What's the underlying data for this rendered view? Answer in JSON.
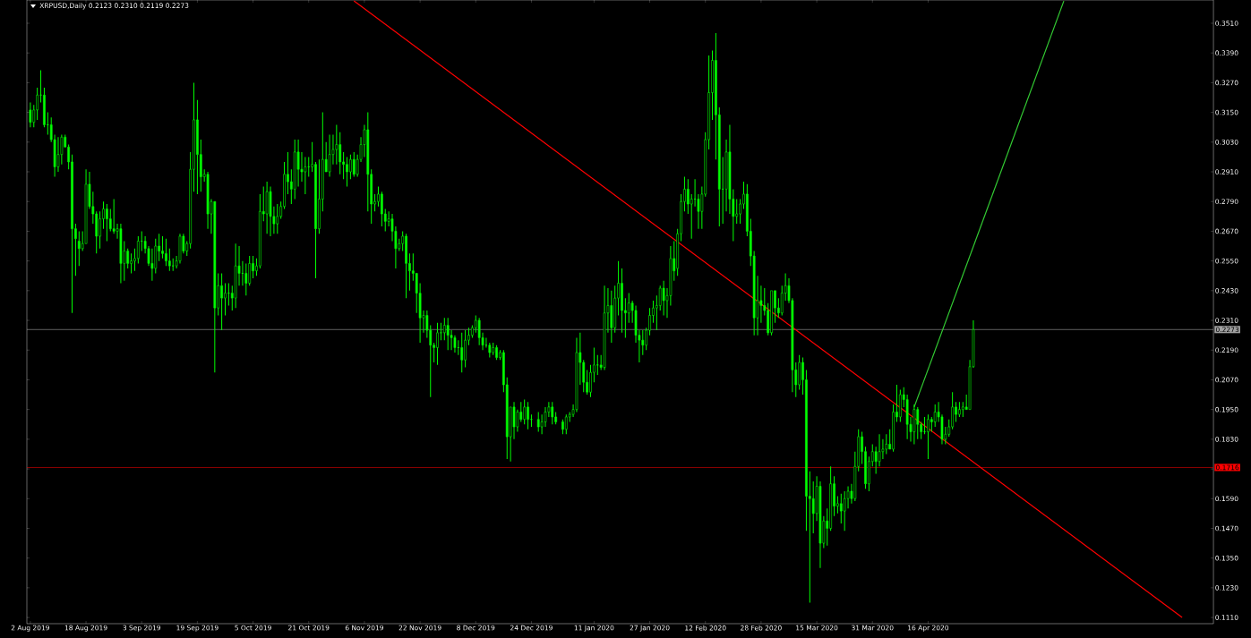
{
  "chart_data": {
    "type": "candlestick",
    "title": "XRPUSD,Daily  0.2123 0.2310 0.2119 0.2273",
    "color": "#00ff00",
    "x": [
      "2019-08-02",
      "2019-08-03",
      "2019-08-04",
      "2019-08-05",
      "2019-08-06",
      "2019-08-07",
      "2019-08-08",
      "2019-08-09",
      "2019-08-10",
      "2019-08-11",
      "2019-08-12",
      "2019-08-13",
      "2019-08-14",
      "2019-08-15",
      "2019-08-16",
      "2019-08-17",
      "2019-08-18",
      "2019-08-19",
      "2019-08-20",
      "2019-08-21",
      "2019-08-22",
      "2019-08-23",
      "2019-08-24",
      "2019-08-25",
      "2019-08-26",
      "2019-08-27",
      "2019-08-28",
      "2019-08-29",
      "2019-08-30",
      "2019-08-31",
      "2019-09-01",
      "2019-09-02",
      "2019-09-03",
      "2019-09-04",
      "2019-09-05",
      "2019-09-06",
      "2019-09-07",
      "2019-09-08",
      "2019-09-09",
      "2019-09-10",
      "2019-09-11",
      "2019-09-12",
      "2019-09-13",
      "2019-09-14",
      "2019-09-15",
      "2019-09-16",
      "2019-09-17",
      "2019-09-18",
      "2019-09-19",
      "2019-09-20",
      "2019-09-21",
      "2019-09-22",
      "2019-09-23",
      "2019-09-24",
      "2019-09-25",
      "2019-09-26",
      "2019-09-27",
      "2019-09-28",
      "2019-09-29",
      "2019-09-30",
      "2019-10-01",
      "2019-10-02",
      "2019-10-03",
      "2019-10-04",
      "2019-10-05",
      "2019-10-06",
      "2019-10-07",
      "2019-10-08",
      "2019-10-09",
      "2019-10-10",
      "2019-10-11",
      "2019-10-12",
      "2019-10-13",
      "2019-10-14",
      "2019-10-15",
      "2019-10-16",
      "2019-10-17",
      "2019-10-18",
      "2019-10-19",
      "2019-10-20",
      "2019-10-21",
      "2019-10-22",
      "2019-10-23",
      "2019-10-24",
      "2019-10-25",
      "2019-10-26",
      "2019-10-27",
      "2019-10-28",
      "2019-10-29",
      "2019-10-30",
      "2019-10-31",
      "2019-11-01",
      "2019-11-02",
      "2019-11-03",
      "2019-11-04",
      "2019-11-05",
      "2019-11-06",
      "2019-11-07",
      "2019-11-08",
      "2019-11-09",
      "2019-11-10",
      "2019-11-11",
      "2019-11-12",
      "2019-11-13",
      "2019-11-14",
      "2019-11-15",
      "2019-11-16",
      "2019-11-17",
      "2019-11-18",
      "2019-11-19",
      "2019-11-20",
      "2019-11-21",
      "2019-11-22",
      "2019-11-23",
      "2019-11-24",
      "2019-11-25",
      "2019-11-26",
      "2019-11-27",
      "2019-11-28",
      "2019-11-29",
      "2019-11-30",
      "2019-12-01",
      "2019-12-02",
      "2019-12-03",
      "2019-12-04",
      "2019-12-05",
      "2019-12-06",
      "2019-12-07",
      "2019-12-08",
      "2019-12-09",
      "2019-12-10",
      "2019-12-11",
      "2019-12-12",
      "2019-12-13",
      "2019-12-14",
      "2019-12-15",
      "2019-12-16",
      "2019-12-17",
      "2019-12-18",
      "2019-12-19",
      "2019-12-20",
      "2019-12-21",
      "2019-12-22",
      "2019-12-23",
      "2019-12-24",
      "2019-12-26",
      "2019-12-27",
      "2019-12-28",
      "2019-12-29",
      "2019-12-30",
      "2019-12-31",
      "2020-01-02",
      "2020-01-03",
      "2020-01-04",
      "2020-01-05",
      "2020-01-06",
      "2020-01-07",
      "2020-01-08",
      "2020-01-09",
      "2020-01-10",
      "2020-01-11",
      "2020-01-12",
      "2020-01-13",
      "2020-01-14",
      "2020-01-15",
      "2020-01-16",
      "2020-01-17",
      "2020-01-18",
      "2020-01-19",
      "2020-01-20",
      "2020-01-21",
      "2020-01-22",
      "2020-01-23",
      "2020-01-24",
      "2020-01-25",
      "2020-01-26",
      "2020-01-27",
      "2020-01-28",
      "2020-01-29",
      "2020-01-30",
      "2020-01-31",
      "2020-02-01",
      "2020-02-02",
      "2020-02-03",
      "2020-02-04",
      "2020-02-05",
      "2020-02-06",
      "2020-02-07",
      "2020-02-08",
      "2020-02-09",
      "2020-02-10",
      "2020-02-11",
      "2020-02-12",
      "2020-02-13",
      "2020-02-14",
      "2020-02-15",
      "2020-02-16",
      "2020-02-17",
      "2020-02-18",
      "2020-02-19",
      "2020-02-20",
      "2020-02-21",
      "2020-02-22",
      "2020-02-23",
      "2020-02-24",
      "2020-02-25",
      "2020-02-26",
      "2020-02-27",
      "2020-02-28",
      "2020-02-29",
      "2020-03-01",
      "2020-03-02",
      "2020-03-03",
      "2020-03-04",
      "2020-03-05",
      "2020-03-06",
      "2020-03-07",
      "2020-03-08",
      "2020-03-09",
      "2020-03-10",
      "2020-03-11",
      "2020-03-12",
      "2020-03-13",
      "2020-03-14",
      "2020-03-15",
      "2020-03-16",
      "2020-03-17",
      "2020-03-18",
      "2020-03-19",
      "2020-03-20",
      "2020-03-21",
      "2020-03-22",
      "2020-03-23",
      "2020-03-24",
      "2020-03-25",
      "2020-03-26",
      "2020-03-27",
      "2020-03-28",
      "2020-03-29",
      "2020-03-30",
      "2020-03-31",
      "2020-04-01",
      "2020-04-02",
      "2020-04-03",
      "2020-04-04",
      "2020-04-05",
      "2020-04-06",
      "2020-04-07",
      "2020-04-08",
      "2020-04-09",
      "2020-04-10",
      "2020-04-11",
      "2020-04-12",
      "2020-04-13",
      "2020-04-14",
      "2020-04-15",
      "2020-04-16",
      "2020-04-17",
      "2020-04-18",
      "2020-04-19",
      "2020-04-20",
      "2020-04-21",
      "2020-04-22",
      "2020-04-23",
      "2020-04-24",
      "2020-04-25",
      "2020-04-26",
      "2020-04-27",
      "2020-04-28",
      "2020-04-29"
    ],
    "ohlc": [
      [
        0.316,
        0.319,
        0.309,
        0.311
      ],
      [
        0.311,
        0.318,
        0.309,
        0.316
      ],
      [
        0.316,
        0.325,
        0.312,
        0.322
      ],
      [
        0.322,
        0.332,
        0.319,
        0.322
      ],
      [
        0.322,
        0.325,
        0.309,
        0.31
      ],
      [
        0.31,
        0.315,
        0.306,
        0.31
      ],
      [
        0.31,
        0.313,
        0.303,
        0.304
      ],
      [
        0.304,
        0.306,
        0.289,
        0.293
      ],
      [
        0.293,
        0.305,
        0.291,
        0.298
      ],
      [
        0.298,
        0.306,
        0.294,
        0.305
      ],
      [
        0.305,
        0.306,
        0.301,
        0.301
      ],
      [
        0.301,
        0.302,
        0.292,
        0.295
      ],
      [
        0.295,
        0.298,
        0.234,
        0.268
      ],
      [
        0.268,
        0.27,
        0.249,
        0.264
      ],
      [
        0.263,
        0.267,
        0.253,
        0.26
      ],
      [
        0.26,
        0.267,
        0.259,
        0.262
      ],
      [
        0.262,
        0.292,
        0.262,
        0.286
      ],
      [
        0.286,
        0.291,
        0.276,
        0.277
      ],
      [
        0.277,
        0.283,
        0.27,
        0.274
      ],
      [
        0.274,
        0.275,
        0.258,
        0.265
      ],
      [
        0.265,
        0.275,
        0.26,
        0.272
      ],
      [
        0.272,
        0.279,
        0.268,
        0.276
      ],
      [
        0.276,
        0.278,
        0.263,
        0.272
      ],
      [
        0.272,
        0.276,
        0.267,
        0.268
      ],
      [
        0.268,
        0.28,
        0.266,
        0.267
      ],
      [
        0.267,
        0.27,
        0.264,
        0.268
      ],
      [
        0.268,
        0.27,
        0.246,
        0.254
      ],
      [
        0.254,
        0.263,
        0.247,
        0.259
      ],
      [
        0.259,
        0.26,
        0.252,
        0.254
      ],
      [
        0.254,
        0.258,
        0.25,
        0.255
      ],
      [
        0.255,
        0.26,
        0.251,
        0.256
      ],
      [
        0.256,
        0.265,
        0.254,
        0.263
      ],
      [
        0.263,
        0.267,
        0.259,
        0.263
      ],
      [
        0.263,
        0.265,
        0.258,
        0.26
      ],
      [
        0.26,
        0.261,
        0.253,
        0.254
      ],
      [
        0.254,
        0.26,
        0.247,
        0.252
      ],
      [
        0.252,
        0.264,
        0.25,
        0.261
      ],
      [
        0.261,
        0.266,
        0.255,
        0.259
      ],
      [
        0.259,
        0.265,
        0.256,
        0.258
      ],
      [
        0.258,
        0.264,
        0.253,
        0.255
      ],
      [
        0.255,
        0.26,
        0.251,
        0.253
      ],
      [
        0.253,
        0.256,
        0.251,
        0.253
      ],
      [
        0.253,
        0.257,
        0.252,
        0.255
      ],
      [
        0.255,
        0.266,
        0.254,
        0.265
      ],
      [
        0.265,
        0.266,
        0.258,
        0.259
      ],
      [
        0.259,
        0.263,
        0.257,
        0.262
      ],
      [
        0.262,
        0.299,
        0.26,
        0.292
      ],
      [
        0.292,
        0.327,
        0.283,
        0.312
      ],
      [
        0.312,
        0.32,
        0.282,
        0.298
      ],
      [
        0.298,
        0.304,
        0.283,
        0.289
      ],
      [
        0.289,
        0.292,
        0.287,
        0.29
      ],
      [
        0.29,
        0.291,
        0.268,
        0.274
      ],
      [
        0.274,
        0.28,
        0.266,
        0.279
      ],
      [
        0.279,
        0.279,
        0.21,
        0.236
      ],
      [
        0.236,
        0.25,
        0.233,
        0.245
      ],
      [
        0.245,
        0.25,
        0.227,
        0.24
      ],
      [
        0.24,
        0.246,
        0.233,
        0.242
      ],
      [
        0.242,
        0.246,
        0.237,
        0.242
      ],
      [
        0.242,
        0.245,
        0.235,
        0.24
      ],
      [
        0.24,
        0.262,
        0.236,
        0.253
      ],
      [
        0.253,
        0.261,
        0.245,
        0.25
      ],
      [
        0.25,
        0.255,
        0.245,
        0.25
      ],
      [
        0.25,
        0.254,
        0.241,
        0.246
      ],
      [
        0.246,
        0.257,
        0.245,
        0.254
      ],
      [
        0.254,
        0.257,
        0.248,
        0.251
      ],
      [
        0.251,
        0.256,
        0.249,
        0.253
      ],
      [
        0.253,
        0.282,
        0.252,
        0.275
      ],
      [
        0.275,
        0.285,
        0.271,
        0.274
      ],
      [
        0.274,
        0.287,
        0.266,
        0.283
      ],
      [
        0.283,
        0.285,
        0.265,
        0.273
      ],
      [
        0.273,
        0.277,
        0.266,
        0.27
      ],
      [
        0.27,
        0.278,
        0.266,
        0.273
      ],
      [
        0.273,
        0.279,
        0.272,
        0.277
      ],
      [
        0.277,
        0.295,
        0.276,
        0.29
      ],
      [
        0.29,
        0.299,
        0.282,
        0.287
      ],
      [
        0.287,
        0.292,
        0.278,
        0.284
      ],
      [
        0.284,
        0.304,
        0.28,
        0.299
      ],
      [
        0.299,
        0.304,
        0.285,
        0.292
      ],
      [
        0.292,
        0.299,
        0.287,
        0.291
      ],
      [
        0.291,
        0.297,
        0.282,
        0.293
      ],
      [
        0.293,
        0.297,
        0.289,
        0.293
      ],
      [
        0.293,
        0.303,
        0.291,
        0.294
      ],
      [
        0.294,
        0.295,
        0.248,
        0.268
      ],
      [
        0.268,
        0.296,
        0.266,
        0.28
      ],
      [
        0.28,
        0.315,
        0.275,
        0.296
      ],
      [
        0.296,
        0.303,
        0.291,
        0.291
      ],
      [
        0.291,
        0.306,
        0.289,
        0.298
      ],
      [
        0.298,
        0.306,
        0.294,
        0.3
      ],
      [
        0.3,
        0.31,
        0.294,
        0.302
      ],
      [
        0.302,
        0.307,
        0.29,
        0.295
      ],
      [
        0.295,
        0.299,
        0.288,
        0.294
      ],
      [
        0.294,
        0.297,
        0.285,
        0.291
      ],
      [
        0.291,
        0.298,
        0.288,
        0.296
      ],
      [
        0.296,
        0.299,
        0.289,
        0.29
      ],
      [
        0.29,
        0.298,
        0.289,
        0.296
      ],
      [
        0.296,
        0.305,
        0.295,
        0.302
      ],
      [
        0.302,
        0.31,
        0.297,
        0.308
      ],
      [
        0.308,
        0.315,
        0.275,
        0.29
      ],
      [
        0.29,
        0.292,
        0.27,
        0.278
      ],
      [
        0.278,
        0.282,
        0.275,
        0.279
      ],
      [
        0.279,
        0.285,
        0.277,
        0.282
      ],
      [
        0.282,
        0.283,
        0.269,
        0.274
      ],
      [
        0.274,
        0.276,
        0.267,
        0.271
      ],
      [
        0.271,
        0.275,
        0.269,
        0.272
      ],
      [
        0.272,
        0.274,
        0.263,
        0.267
      ],
      [
        0.267,
        0.269,
        0.252,
        0.26
      ],
      [
        0.26,
        0.264,
        0.259,
        0.262
      ],
      [
        0.262,
        0.267,
        0.259,
        0.265
      ],
      [
        0.265,
        0.266,
        0.24,
        0.254
      ],
      [
        0.254,
        0.258,
        0.243,
        0.251
      ],
      [
        0.251,
        0.258,
        0.247,
        0.25
      ],
      [
        0.25,
        0.25,
        0.234,
        0.242
      ],
      [
        0.242,
        0.246,
        0.222,
        0.232
      ],
      [
        0.232,
        0.235,
        0.226,
        0.233
      ],
      [
        0.233,
        0.235,
        0.224,
        0.227
      ],
      [
        0.227,
        0.229,
        0.2,
        0.221
      ],
      [
        0.221,
        0.222,
        0.214,
        0.22
      ],
      [
        0.22,
        0.23,
        0.213,
        0.226
      ],
      [
        0.226,
        0.23,
        0.223,
        0.226
      ],
      [
        0.226,
        0.232,
        0.223,
        0.229
      ],
      [
        0.229,
        0.232,
        0.219,
        0.225
      ],
      [
        0.225,
        0.227,
        0.219,
        0.224
      ],
      [
        0.224,
        0.225,
        0.218,
        0.22
      ],
      [
        0.22,
        0.223,
        0.217,
        0.22
      ],
      [
        0.22,
        0.226,
        0.21,
        0.215
      ],
      [
        0.215,
        0.227,
        0.212,
        0.223
      ],
      [
        0.223,
        0.228,
        0.221,
        0.225
      ],
      [
        0.225,
        0.229,
        0.224,
        0.228
      ],
      [
        0.228,
        0.233,
        0.226,
        0.231
      ],
      [
        0.231,
        0.232,
        0.221,
        0.224
      ],
      [
        0.224,
        0.226,
        0.219,
        0.221
      ],
      [
        0.221,
        0.224,
        0.22,
        0.221
      ],
      [
        0.221,
        0.222,
        0.216,
        0.218
      ],
      [
        0.218,
        0.222,
        0.217,
        0.22
      ],
      [
        0.22,
        0.221,
        0.215,
        0.216
      ],
      [
        0.216,
        0.219,
        0.215,
        0.218
      ],
      [
        0.218,
        0.219,
        0.202,
        0.205
      ],
      [
        0.205,
        0.208,
        0.175,
        0.184
      ],
      [
        0.184,
        0.196,
        0.174,
        0.196
      ],
      [
        0.196,
        0.198,
        0.183,
        0.188
      ],
      [
        0.188,
        0.195,
        0.186,
        0.194
      ],
      [
        0.194,
        0.198,
        0.19,
        0.191
      ],
      [
        0.191,
        0.199,
        0.189,
        0.196
      ],
      [
        0.196,
        0.198,
        0.187,
        0.191
      ],
      [
        0.191,
        0.193,
        0.188,
        0.191
      ],
      [
        0.191,
        0.194,
        0.186,
        0.188
      ],
      [
        0.188,
        0.193,
        0.185,
        0.19
      ],
      [
        0.19,
        0.196,
        0.188,
        0.194
      ],
      [
        0.194,
        0.198,
        0.192,
        0.196
      ],
      [
        0.196,
        0.198,
        0.189,
        0.192
      ],
      [
        0.192,
        0.194,
        0.189,
        0.19
      ],
      [
        0.19,
        0.191,
        0.185,
        0.187
      ],
      [
        0.187,
        0.193,
        0.185,
        0.192
      ],
      [
        0.192,
        0.194,
        0.19,
        0.193
      ],
      [
        0.193,
        0.197,
        0.192,
        0.195
      ],
      [
        0.195,
        0.224,
        0.194,
        0.218
      ],
      [
        0.218,
        0.226,
        0.205,
        0.214
      ],
      [
        0.214,
        0.215,
        0.202,
        0.206
      ],
      [
        0.206,
        0.211,
        0.201,
        0.202
      ],
      [
        0.202,
        0.213,
        0.2,
        0.21
      ],
      [
        0.21,
        0.22,
        0.206,
        0.213
      ],
      [
        0.213,
        0.217,
        0.209,
        0.213
      ],
      [
        0.213,
        0.217,
        0.211,
        0.212
      ],
      [
        0.212,
        0.245,
        0.211,
        0.234
      ],
      [
        0.234,
        0.244,
        0.226,
        0.237
      ],
      [
        0.237,
        0.243,
        0.222,
        0.228
      ],
      [
        0.228,
        0.245,
        0.226,
        0.24
      ],
      [
        0.24,
        0.255,
        0.233,
        0.246
      ],
      [
        0.246,
        0.252,
        0.226,
        0.235
      ],
      [
        0.235,
        0.24,
        0.224,
        0.234
      ],
      [
        0.234,
        0.242,
        0.23,
        0.238
      ],
      [
        0.238,
        0.239,
        0.23,
        0.235
      ],
      [
        0.235,
        0.237,
        0.222,
        0.225
      ],
      [
        0.225,
        0.227,
        0.214,
        0.223
      ],
      [
        0.223,
        0.227,
        0.217,
        0.221
      ],
      [
        0.221,
        0.228,
        0.219,
        0.227
      ],
      [
        0.227,
        0.236,
        0.225,
        0.233
      ],
      [
        0.233,
        0.239,
        0.23,
        0.236
      ],
      [
        0.236,
        0.241,
        0.227,
        0.237
      ],
      [
        0.237,
        0.245,
        0.235,
        0.244
      ],
      [
        0.244,
        0.247,
        0.233,
        0.239
      ],
      [
        0.239,
        0.244,
        0.232,
        0.241
      ],
      [
        0.241,
        0.261,
        0.237,
        0.256
      ],
      [
        0.256,
        0.263,
        0.247,
        0.251
      ],
      [
        0.252,
        0.268,
        0.249,
        0.266
      ],
      [
        0.266,
        0.282,
        0.263,
        0.279
      ],
      [
        0.279,
        0.289,
        0.275,
        0.284
      ],
      [
        0.284,
        0.288,
        0.274,
        0.278
      ],
      [
        0.278,
        0.282,
        0.264,
        0.28
      ],
      [
        0.28,
        0.288,
        0.277,
        0.28
      ],
      [
        0.28,
        0.282,
        0.268,
        0.275
      ],
      [
        0.275,
        0.285,
        0.268,
        0.282
      ],
      [
        0.282,
        0.307,
        0.281,
        0.304
      ],
      [
        0.304,
        0.338,
        0.3,
        0.323
      ],
      [
        0.323,
        0.34,
        0.312,
        0.336
      ],
      [
        0.336,
        0.347,
        0.296,
        0.314
      ],
      [
        0.314,
        0.317,
        0.269,
        0.284
      ],
      [
        0.284,
        0.297,
        0.27,
        0.284
      ],
      [
        0.284,
        0.304,
        0.275,
        0.299
      ],
      [
        0.299,
        0.31,
        0.274,
        0.28
      ],
      [
        0.28,
        0.284,
        0.263,
        0.273
      ],
      [
        0.273,
        0.28,
        0.27,
        0.274
      ],
      [
        0.274,
        0.28,
        0.27,
        0.278
      ],
      [
        0.278,
        0.287,
        0.276,
        0.282
      ],
      [
        0.282,
        0.286,
        0.265,
        0.267
      ],
      [
        0.267,
        0.272,
        0.253,
        0.257
      ],
      [
        0.257,
        0.259,
        0.225,
        0.232
      ],
      [
        0.232,
        0.249,
        0.225,
        0.239
      ],
      [
        0.239,
        0.245,
        0.23,
        0.237
      ],
      [
        0.237,
        0.244,
        0.233,
        0.235
      ],
      [
        0.235,
        0.238,
        0.225,
        0.226
      ],
      [
        0.226,
        0.243,
        0.225,
        0.243
      ],
      [
        0.243,
        0.243,
        0.23,
        0.236
      ],
      [
        0.236,
        0.24,
        0.232,
        0.234
      ],
      [
        0.234,
        0.245,
        0.233,
        0.242
      ],
      [
        0.242,
        0.25,
        0.239,
        0.245
      ],
      [
        0.245,
        0.248,
        0.238,
        0.239
      ],
      [
        0.239,
        0.24,
        0.202,
        0.211
      ],
      [
        0.211,
        0.214,
        0.2,
        0.205
      ],
      [
        0.205,
        0.217,
        0.203,
        0.214
      ],
      [
        0.214,
        0.216,
        0.201,
        0.207
      ],
      [
        0.207,
        0.211,
        0.146,
        0.16
      ],
      [
        0.16,
        0.17,
        0.117,
        0.159
      ],
      [
        0.159,
        0.166,
        0.145,
        0.153
      ],
      [
        0.153,
        0.168,
        0.15,
        0.164
      ],
      [
        0.164,
        0.166,
        0.131,
        0.141
      ],
      [
        0.141,
        0.152,
        0.139,
        0.15
      ],
      [
        0.15,
        0.155,
        0.14,
        0.147
      ],
      [
        0.147,
        0.172,
        0.146,
        0.165
      ],
      [
        0.165,
        0.168,
        0.152,
        0.156
      ],
      [
        0.156,
        0.16,
        0.153,
        0.157
      ],
      [
        0.157,
        0.161,
        0.149,
        0.154
      ],
      [
        0.154,
        0.162,
        0.146,
        0.159
      ],
      [
        0.159,
        0.164,
        0.155,
        0.162
      ],
      [
        0.162,
        0.165,
        0.157,
        0.159
      ],
      [
        0.159,
        0.178,
        0.158,
        0.172
      ],
      [
        0.172,
        0.187,
        0.17,
        0.184
      ],
      [
        0.184,
        0.186,
        0.173,
        0.178
      ],
      [
        0.178,
        0.18,
        0.163,
        0.165
      ],
      [
        0.165,
        0.176,
        0.162,
        0.174
      ],
      [
        0.174,
        0.181,
        0.172,
        0.178
      ],
      [
        0.178,
        0.18,
        0.169,
        0.174
      ],
      [
        0.174,
        0.185,
        0.172,
        0.178
      ],
      [
        0.178,
        0.183,
        0.175,
        0.179
      ],
      [
        0.179,
        0.185,
        0.177,
        0.181
      ],
      [
        0.181,
        0.187,
        0.179,
        0.179
      ],
      [
        0.179,
        0.197,
        0.178,
        0.194
      ],
      [
        0.194,
        0.205,
        0.19,
        0.192
      ],
      [
        0.192,
        0.203,
        0.19,
        0.201
      ],
      [
        0.201,
        0.204,
        0.196,
        0.199
      ],
      [
        0.199,
        0.201,
        0.183,
        0.189
      ],
      [
        0.189,
        0.192,
        0.182,
        0.186
      ],
      [
        0.186,
        0.197,
        0.181,
        0.195
      ],
      [
        0.195,
        0.196,
        0.183,
        0.189
      ],
      [
        0.189,
        0.19,
        0.183,
        0.186
      ],
      [
        0.186,
        0.192,
        0.185,
        0.186
      ],
      [
        0.186,
        0.193,
        0.175,
        0.191
      ],
      [
        0.191,
        0.192,
        0.186,
        0.19
      ],
      [
        0.19,
        0.197,
        0.188,
        0.194
      ],
      [
        0.194,
        0.198,
        0.19,
        0.192
      ],
      [
        0.192,
        0.193,
        0.181,
        0.183
      ],
      [
        0.183,
        0.188,
        0.181,
        0.185
      ],
      [
        0.185,
        0.191,
        0.184,
        0.188
      ],
      [
        0.188,
        0.202,
        0.187,
        0.196
      ],
      [
        0.196,
        0.198,
        0.19,
        0.193
      ],
      [
        0.193,
        0.198,
        0.192,
        0.195
      ],
      [
        0.195,
        0.198,
        0.192,
        0.196
      ],
      [
        0.196,
        0.201,
        0.195,
        0.195
      ],
      [
        0.195,
        0.215,
        0.195,
        0.2123
      ],
      [
        0.2123,
        0.231,
        0.2119,
        0.2273
      ]
    ],
    "series": [
      {
        "type": "line",
        "color": "#ff0000",
        "x": [
          "2019-11-03",
          "2020-06-28"
        ],
        "values": [
          0.36,
          0.111
        ]
      },
      {
        "type": "line",
        "color": "#33cc33",
        "x": [
          "2020-04-12",
          "2020-05-25"
        ],
        "values": [
          0.196,
          0.36
        ]
      }
    ],
    "ref_lines": [
      {
        "axis": "y",
        "value": 0.2273,
        "label": "0.2273",
        "color": "#a0a0a0"
      },
      {
        "axis": "y",
        "value": 0.1716,
        "label": "0.1716",
        "color": "#ff0000"
      }
    ],
    "xlim": [
      "2019-08-01",
      "2020-07-07"
    ],
    "xticks": [
      {
        "value": "2019-08-02",
        "label": "2 Aug 2019"
      },
      {
        "value": "2019-08-18",
        "label": "18 Aug 2019"
      },
      {
        "value": "2019-09-03",
        "label": "3 Sep 2019"
      },
      {
        "value": "2019-09-19",
        "label": "19 Sep 2019"
      },
      {
        "value": "2019-10-05",
        "label": "5 Oct 2019"
      },
      {
        "value": "2019-10-21",
        "label": "21 Oct 2019"
      },
      {
        "value": "2019-11-06",
        "label": "6 Nov 2019"
      },
      {
        "value": "2019-11-22",
        "label": "22 Nov 2019"
      },
      {
        "value": "2019-12-08",
        "label": "8 Dec 2019"
      },
      {
        "value": "2019-12-24",
        "label": "24 Dec 2019"
      },
      {
        "value": "2020-01-11",
        "label": "11 Jan 2020"
      },
      {
        "value": "2020-01-27",
        "label": "27 Jan 2020"
      },
      {
        "value": "2020-02-12",
        "label": "12 Feb 2020"
      },
      {
        "value": "2020-02-28",
        "label": "28 Feb 2020"
      },
      {
        "value": "2020-03-15",
        "label": "15 Mar 2020"
      },
      {
        "value": "2020-03-31",
        "label": "31 Mar 2020"
      },
      {
        "value": "2020-04-16",
        "label": "16 Apr 2020"
      }
    ],
    "ylim": [
      0.1085,
      0.3604
    ],
    "yticks": [
      {
        "value": 0.351,
        "label": "0.3510"
      },
      {
        "value": 0.339,
        "label": "0.3390"
      },
      {
        "value": 0.327,
        "label": "0.3270"
      },
      {
        "value": 0.315,
        "label": "0.3150"
      },
      {
        "value": 0.303,
        "label": "0.3030"
      },
      {
        "value": 0.291,
        "label": "0.2910"
      },
      {
        "value": 0.279,
        "label": "0.2790"
      },
      {
        "value": 0.267,
        "label": "0.2670"
      },
      {
        "value": 0.255,
        "label": "0.2550"
      },
      {
        "value": 0.243,
        "label": "0.2430"
      },
      {
        "value": 0.231,
        "label": "0.2310"
      },
      {
        "value": 0.219,
        "label": "0.2190"
      },
      {
        "value": 0.207,
        "label": "0.2070"
      },
      {
        "value": 0.195,
        "label": "0.1950"
      },
      {
        "value": 0.183,
        "label": "0.1830"
      },
      {
        "value": 0.171,
        "label": null
      },
      {
        "value": 0.159,
        "label": "0.1590"
      },
      {
        "value": 0.147,
        "label": "0.1470"
      },
      {
        "value": 0.135,
        "label": "0.1350"
      },
      {
        "value": 0.123,
        "label": "0.1230"
      },
      {
        "value": 0.111,
        "label": "0.1110"
      }
    ]
  }
}
